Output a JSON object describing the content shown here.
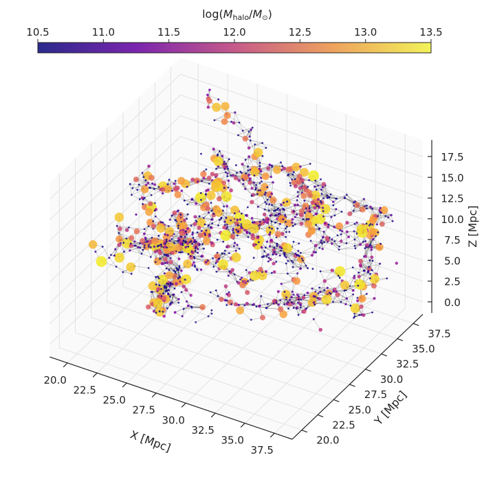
{
  "chart_data": {
    "type": "scatter",
    "projection": "3d",
    "xlabel": "X [Mpc]",
    "ylabel": "Y [Mpc]",
    "zlabel": "Z [Mpc]",
    "xticks": [
      "20.0",
      "22.5",
      "25.0",
      "27.5",
      "30.0",
      "32.5",
      "35.0",
      "37.5"
    ],
    "yticks": [
      "20.0",
      "22.5",
      "25.0",
      "27.5",
      "30.0",
      "32.5",
      "35.0",
      "37.5"
    ],
    "zticks": [
      "0.0",
      "2.5",
      "5.0",
      "7.5",
      "10.0",
      "12.5",
      "15.0",
      "17.5"
    ],
    "xlim": [
      18.5,
      39
    ],
    "ylim": [
      18.5,
      39
    ],
    "zlim": [
      -1.5,
      19.5
    ],
    "grid": true,
    "edges": "network edges connecting neighbouring halos (thin black lines)",
    "colorbar": {
      "label": "log(M_halo/M_⊙)",
      "label_main": "log(",
      "label_m1": "M",
      "label_sub": "halo",
      "label_slash": "/",
      "label_m2": "M",
      "label_sun": "⊙",
      "label_close": ")",
      "ticks": [
        "10.5",
        "11.0",
        "11.5",
        "12.0",
        "12.5",
        "13.0",
        "13.5"
      ],
      "range": [
        10.5,
        13.5
      ],
      "colormap": "plasma",
      "placement": "top",
      "colors": [
        "#0d0887",
        "#7e03a8",
        "#cc4778",
        "#f89540",
        "#f0f921"
      ]
    }
  }
}
